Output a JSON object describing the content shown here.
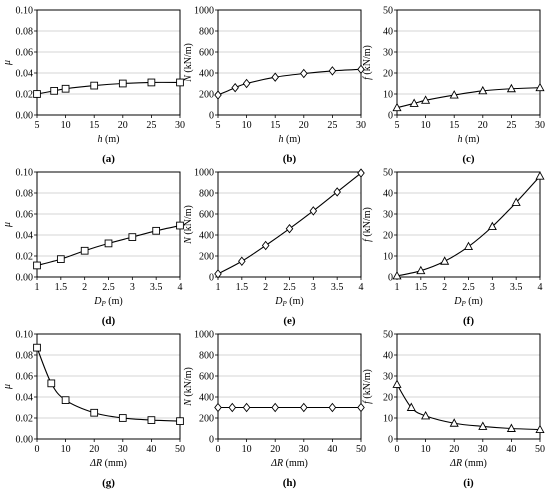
{
  "chart_data": [
    {
      "id": "a",
      "type": "line",
      "caption": "(a)",
      "xlabel": "h (m)",
      "xvar": "h",
      "xunit": " (m)",
      "ylabel": "μ",
      "yvar": "μ",
      "yunit": "",
      "xlim": [
        5,
        30
      ],
      "ylim": [
        0,
        0.1
      ],
      "xticks": [
        "5",
        "10",
        "15",
        "20",
        "25",
        "30"
      ],
      "yticks": [
        "0.00",
        "0.02",
        "0.04",
        "0.06",
        "0.08",
        "0.10"
      ],
      "marker": "square",
      "x": [
        5,
        8,
        10,
        15,
        20,
        25,
        30
      ],
      "y": [
        0.02,
        0.023,
        0.025,
        0.028,
        0.03,
        0.031,
        0.031
      ]
    },
    {
      "id": "b",
      "type": "line",
      "caption": "(b)",
      "xlabel": "h (m)",
      "xvar": "h",
      "xunit": " (m)",
      "ylabel": "N (kN/m)",
      "yvar": "N",
      "yunit": " (kN/m)",
      "xlim": [
        5,
        30
      ],
      "ylim": [
        0,
        1000
      ],
      "xticks": [
        "5",
        "10",
        "15",
        "20",
        "25",
        "30"
      ],
      "yticks": [
        "0",
        "200",
        "400",
        "600",
        "800",
        "1000"
      ],
      "marker": "diamond",
      "x": [
        5,
        8,
        10,
        15,
        20,
        25,
        30
      ],
      "y": [
        190,
        260,
        300,
        360,
        395,
        420,
        435
      ]
    },
    {
      "id": "c",
      "type": "line",
      "caption": "(c)",
      "xlabel": "h (m)",
      "xvar": "h",
      "xunit": " (m)",
      "ylabel": "f (kN/m)",
      "yvar": "f",
      "yunit": " (kN/m)",
      "xlim": [
        5,
        30
      ],
      "ylim": [
        0,
        50
      ],
      "xticks": [
        "5",
        "10",
        "15",
        "20",
        "25",
        "30"
      ],
      "yticks": [
        "0",
        "10",
        "20",
        "30",
        "40",
        "50"
      ],
      "marker": "triangle",
      "x": [
        5,
        8,
        10,
        15,
        20,
        25,
        30
      ],
      "y": [
        3.5,
        5.5,
        7,
        9.5,
        11.5,
        12.5,
        13
      ]
    },
    {
      "id": "d",
      "type": "line",
      "caption": "(d)",
      "xlabel": "DP (m)",
      "xvar": "D",
      "xsub": "P",
      "xunit": " (m)",
      "ylabel": "μ",
      "yvar": "μ",
      "yunit": "",
      "xlim": [
        1,
        4
      ],
      "ylim": [
        0,
        0.1
      ],
      "xticks": [
        "1",
        "1.5",
        "2",
        "2.5",
        "3",
        "3.5",
        "4"
      ],
      "yticks": [
        "0.00",
        "0.02",
        "0.04",
        "0.06",
        "0.08",
        "0.10"
      ],
      "marker": "square",
      "x": [
        1,
        1.5,
        2,
        2.5,
        3,
        3.5,
        4
      ],
      "y": [
        0.011,
        0.017,
        0.025,
        0.032,
        0.038,
        0.044,
        0.049
      ]
    },
    {
      "id": "e",
      "type": "line",
      "caption": "(e)",
      "xlabel": "DP (m)",
      "xvar": "D",
      "xsub": "P",
      "xunit": " (m)",
      "ylabel": "N (kN/m)",
      "yvar": "N",
      "yunit": " (kN/m)",
      "xlim": [
        1,
        4
      ],
      "ylim": [
        0,
        1000
      ],
      "xticks": [
        "1",
        "1.5",
        "2",
        "2.5",
        "3",
        "3.5",
        "4"
      ],
      "yticks": [
        "0",
        "200",
        "400",
        "600",
        "800",
        "1000"
      ],
      "marker": "diamond",
      "x": [
        1,
        1.5,
        2,
        2.5,
        3,
        3.5,
        4
      ],
      "y": [
        30,
        150,
        300,
        460,
        630,
        810,
        990
      ]
    },
    {
      "id": "f",
      "type": "line",
      "caption": "(f)",
      "xlabel": "DP (m)",
      "xvar": "D",
      "xsub": "P",
      "xunit": " (m)",
      "ylabel": "f (kN/m)",
      "yvar": "f",
      "yunit": " (kN/m)",
      "xlim": [
        1,
        4
      ],
      "ylim": [
        0,
        50
      ],
      "xticks": [
        "1",
        "1.5",
        "2",
        "2.5",
        "3",
        "3.5",
        "4"
      ],
      "yticks": [
        "0",
        "10",
        "20",
        "30",
        "40",
        "50"
      ],
      "marker": "triangle",
      "x": [
        1,
        1.5,
        2,
        2.5,
        3,
        3.5,
        4
      ],
      "y": [
        0.5,
        3,
        7.5,
        14.5,
        24,
        35.5,
        48
      ]
    },
    {
      "id": "g",
      "type": "line",
      "caption": "(g)",
      "xlabel": "ΔR (mm)",
      "xvar": "ΔR",
      "xunit": " (mm)",
      "ylabel": "μ",
      "yvar": "μ",
      "yunit": "",
      "xlim": [
        0,
        50
      ],
      "ylim": [
        0,
        0.1
      ],
      "xticks": [
        "0",
        "10",
        "20",
        "30",
        "40",
        "50"
      ],
      "yticks": [
        "0.00",
        "0.02",
        "0.04",
        "0.06",
        "0.08",
        "0.10"
      ],
      "marker": "square",
      "x": [
        0,
        5,
        10,
        20,
        30,
        40,
        50
      ],
      "y": [
        0.087,
        0.053,
        0.037,
        0.025,
        0.02,
        0.018,
        0.017
      ]
    },
    {
      "id": "h",
      "type": "line",
      "caption": "(h)",
      "xlabel": "ΔR (mm)",
      "xvar": "ΔR",
      "xunit": " (mm)",
      "ylabel": "N (kN/m)",
      "yvar": "N",
      "yunit": " (kN/m)",
      "xlim": [
        0,
        50
      ],
      "ylim": [
        0,
        1000
      ],
      "xticks": [
        "0",
        "10",
        "20",
        "30",
        "40",
        "50"
      ],
      "yticks": [
        "0",
        "200",
        "400",
        "600",
        "800",
        "1000"
      ],
      "marker": "diamond",
      "x": [
        0,
        5,
        10,
        20,
        30,
        40,
        50
      ],
      "y": [
        300,
        300,
        300,
        300,
        300,
        300,
        300
      ]
    },
    {
      "id": "i",
      "type": "line",
      "caption": "(i)",
      "xlabel": "ΔR (mm)",
      "xvar": "ΔR",
      "xunit": " (mm)",
      "ylabel": "f (kN/m)",
      "yvar": "f",
      "yunit": " (kN/m)",
      "xlim": [
        0,
        50
      ],
      "ylim": [
        0,
        50
      ],
      "xticks": [
        "0",
        "10",
        "20",
        "30",
        "40",
        "50"
      ],
      "yticks": [
        "0",
        "10",
        "20",
        "30",
        "40",
        "50"
      ],
      "marker": "triangle",
      "x": [
        0,
        5,
        10,
        20,
        30,
        40,
        50
      ],
      "y": [
        26,
        15,
        11,
        7.5,
        6,
        5,
        4.5
      ]
    }
  ]
}
